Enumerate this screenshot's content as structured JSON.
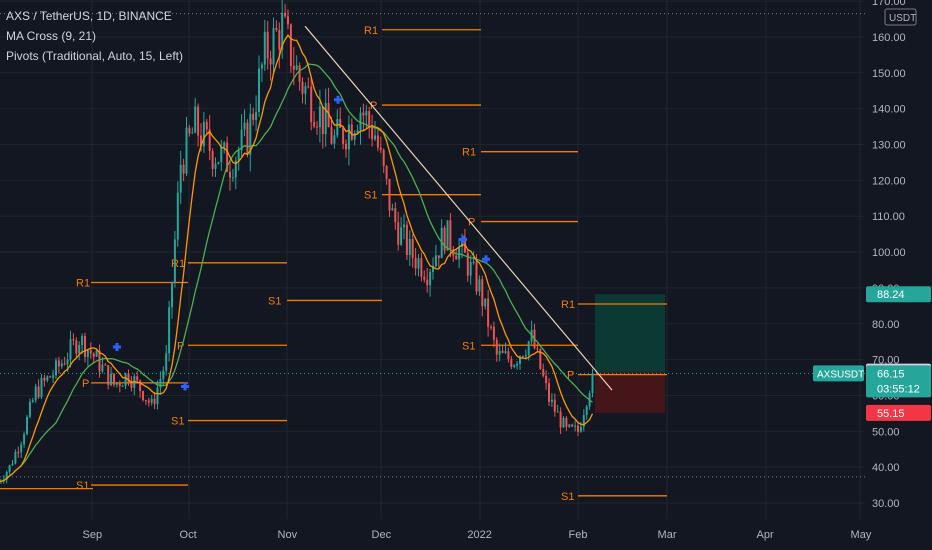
{
  "header": {
    "symbol_line": "AXS / TetherUS, 1D, BINANCE",
    "indicator_1": "MA Cross (9, 21)",
    "indicator_2": "Pivots (Traditional, Auto, 15, Left)"
  },
  "currency_label": "USDT",
  "colors": {
    "background": "#131722",
    "grid": "#1f2430",
    "up": "#26a69a",
    "down": "#ef5350",
    "ma_fast": "#ff9800",
    "ma_slow": "#4caf50",
    "pivot": "#f57c00",
    "trendline": "#e6d2b0",
    "cross_marker": "#2962ff",
    "text": "#b2b5be",
    "target_fill": "#0b3d36",
    "stop_fill": "#4a1518",
    "last_price_badge": "#26a69a",
    "target_badge": "#26a69a",
    "entry_badge": "#d1d4dc",
    "stop_badge": "#f23645"
  },
  "chart_data": {
    "type": "candlestick",
    "y_axis": {
      "ylim": [
        28,
        170
      ],
      "ticks": [
        "30.00",
        "40.00",
        "50.00",
        "60.00",
        "70.00",
        "80.00",
        "90.00",
        "100.00",
        "110.00",
        "120.00",
        "130.00",
        "140.00",
        "150.00",
        "160.00",
        "170.00"
      ]
    },
    "x_axis": {
      "labels": [
        "Sep",
        "Oct",
        "Nov",
        "Dec",
        "2022",
        "Feb",
        "Mar",
        "Apr",
        "May"
      ]
    },
    "price_path_anchors": [
      {
        "t": 0,
        "v": 36
      },
      {
        "t": 4,
        "v": 40
      },
      {
        "t": 8,
        "v": 48
      },
      {
        "t": 13,
        "v": 61
      },
      {
        "t": 20,
        "v": 67
      },
      {
        "t": 28,
        "v": 76
      },
      {
        "t": 34,
        "v": 70
      },
      {
        "t": 40,
        "v": 63
      },
      {
        "t": 45,
        "v": 66
      },
      {
        "t": 50,
        "v": 61
      },
      {
        "t": 53,
        "v": 57
      },
      {
        "t": 58,
        "v": 70
      },
      {
        "t": 63,
        "v": 125
      },
      {
        "t": 68,
        "v": 135
      },
      {
        "t": 74,
        "v": 128
      },
      {
        "t": 80,
        "v": 125
      },
      {
        "t": 86,
        "v": 132
      },
      {
        "t": 92,
        "v": 155
      },
      {
        "t": 98,
        "v": 163
      },
      {
        "t": 104,
        "v": 148
      },
      {
        "t": 110,
        "v": 140
      },
      {
        "t": 116,
        "v": 131
      },
      {
        "t": 120,
        "v": 134
      },
      {
        "t": 125,
        "v": 140
      },
      {
        "t": 130,
        "v": 133
      },
      {
        "t": 136,
        "v": 110
      },
      {
        "t": 142,
        "v": 100
      },
      {
        "t": 148,
        "v": 95
      },
      {
        "t": 154,
        "v": 105
      },
      {
        "t": 160,
        "v": 100
      },
      {
        "t": 166,
        "v": 90
      },
      {
        "t": 172,
        "v": 71
      },
      {
        "t": 178,
        "v": 70
      },
      {
        "t": 184,
        "v": 76
      },
      {
        "t": 190,
        "v": 59
      },
      {
        "t": 196,
        "v": 50
      },
      {
        "t": 200,
        "v": 50
      },
      {
        "t": 205,
        "v": 66
      }
    ],
    "pivot_levels": [
      {
        "label": "R1",
        "value": 91.5
      },
      {
        "label": "P",
        "value": 63.5
      },
      {
        "label": "S1",
        "value": 35
      },
      {
        "label": "R1",
        "value": 97
      },
      {
        "label": "P",
        "value": 74
      },
      {
        "label": "S1",
        "value": 86.5
      },
      {
        "label": "S1",
        "value": 53
      },
      {
        "label": "R1",
        "value": 162
      },
      {
        "label": "P",
        "value": 141
      },
      {
        "label": "S1",
        "value": 116
      },
      {
        "label": "R1",
        "value": 128
      },
      {
        "label": "P",
        "value": 108.5
      },
      {
        "label": "S1",
        "value": 74
      },
      {
        "label": "R1",
        "value": 85.5
      },
      {
        "label": "P",
        "value": 65.8
      },
      {
        "label": "S1",
        "value": 32
      }
    ],
    "position": {
      "target": 88.24,
      "entry": 66.66,
      "stop": 55.15
    },
    "last_price": 66.15,
    "horizontal_lines": [
      66.15,
      37.3,
      166.5
    ]
  },
  "price_badges": {
    "target": "88.24",
    "entry": "66.66",
    "last_symbol": "AXSUSDT",
    "last_price": "66.15",
    "countdown": "03:55:12",
    "stop": "55.15"
  }
}
